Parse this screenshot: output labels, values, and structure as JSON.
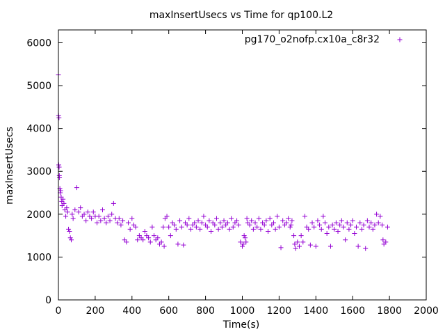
{
  "chart_data": {
    "type": "scatter",
    "title": "maxInsertUsecs vs Time for qp100.L2",
    "xlabel": "Time(s)",
    "ylabel": "maxInsertUsecs",
    "xlim": [
      0,
      2000
    ],
    "ylim": [
      0,
      6300
    ],
    "xticks": [
      0,
      200,
      400,
      600,
      800,
      1000,
      1200,
      1400,
      1600,
      1800,
      2000
    ],
    "yticks": [
      0,
      1000,
      2000,
      3000,
      4000,
      5000,
      6000
    ],
    "grid": false,
    "legend_position": "top-right",
    "series": [
      {
        "name": "pg170_o2nofp.cx10a_c8r32",
        "color": "#9400d3",
        "marker": "plus",
        "points": [
          [
            0,
            5250
          ],
          [
            1,
            4300
          ],
          [
            3,
            4250
          ],
          [
            2,
            3150
          ],
          [
            4,
            3100
          ],
          [
            5,
            2900
          ],
          [
            6,
            2850
          ],
          [
            8,
            2600
          ],
          [
            10,
            2500
          ],
          [
            12,
            2550
          ],
          [
            15,
            2400
          ],
          [
            18,
            2300
          ],
          [
            20,
            2200
          ],
          [
            25,
            2350
          ],
          [
            30,
            2250
          ],
          [
            35,
            2100
          ],
          [
            40,
            1950
          ],
          [
            45,
            2150
          ],
          [
            50,
            2050
          ],
          [
            55,
            1650
          ],
          [
            60,
            1600
          ],
          [
            65,
            1450
          ],
          [
            70,
            1400
          ],
          [
            75,
            2000
          ],
          [
            80,
            1900
          ],
          [
            90,
            2100
          ],
          [
            100,
            2620
          ],
          [
            110,
            2050
          ],
          [
            120,
            2150
          ],
          [
            130,
            1950
          ],
          [
            140,
            2000
          ],
          [
            150,
            1850
          ],
          [
            160,
            2050
          ],
          [
            170,
            1950
          ],
          [
            180,
            1900
          ],
          [
            190,
            2050
          ],
          [
            200,
            1950
          ],
          [
            210,
            1800
          ],
          [
            220,
            1950
          ],
          [
            230,
            1850
          ],
          [
            240,
            2100
          ],
          [
            250,
            1900
          ],
          [
            260,
            1800
          ],
          [
            270,
            1950
          ],
          [
            280,
            1850
          ],
          [
            290,
            2000
          ],
          [
            300,
            2250
          ],
          [
            310,
            1900
          ],
          [
            320,
            1800
          ],
          [
            330,
            1900
          ],
          [
            340,
            1750
          ],
          [
            350,
            1850
          ],
          [
            360,
            1400
          ],
          [
            370,
            1350
          ],
          [
            380,
            1800
          ],
          [
            390,
            1650
          ],
          [
            400,
            1900
          ],
          [
            410,
            1750
          ],
          [
            420,
            1700
          ],
          [
            430,
            1400
          ],
          [
            440,
            1500
          ],
          [
            450,
            1450
          ],
          [
            460,
            1400
          ],
          [
            470,
            1600
          ],
          [
            480,
            1500
          ],
          [
            490,
            1450
          ],
          [
            500,
            1350
          ],
          [
            510,
            1700
          ],
          [
            520,
            1500
          ],
          [
            530,
            1400
          ],
          [
            540,
            1450
          ],
          [
            550,
            1300
          ],
          [
            560,
            1350
          ],
          [
            570,
            1700
          ],
          [
            575,
            1250
          ],
          [
            580,
            1900
          ],
          [
            590,
            1950
          ],
          [
            600,
            1700
          ],
          [
            610,
            1500
          ],
          [
            620,
            1800
          ],
          [
            630,
            1750
          ],
          [
            640,
            1650
          ],
          [
            650,
            1300
          ],
          [
            660,
            1850
          ],
          [
            670,
            1700
          ],
          [
            680,
            1280
          ],
          [
            690,
            1800
          ],
          [
            700,
            1750
          ],
          [
            710,
            1900
          ],
          [
            720,
            1650
          ],
          [
            730,
            1750
          ],
          [
            740,
            1800
          ],
          [
            750,
            1700
          ],
          [
            760,
            1850
          ],
          [
            770,
            1650
          ],
          [
            780,
            1800
          ],
          [
            790,
            1950
          ],
          [
            800,
            1750
          ],
          [
            810,
            1700
          ],
          [
            820,
            1850
          ],
          [
            830,
            1600
          ],
          [
            840,
            1800
          ],
          [
            850,
            1750
          ],
          [
            860,
            1900
          ],
          [
            870,
            1650
          ],
          [
            880,
            1800
          ],
          [
            890,
            1700
          ],
          [
            900,
            1850
          ],
          [
            910,
            1750
          ],
          [
            920,
            1800
          ],
          [
            930,
            1650
          ],
          [
            940,
            1900
          ],
          [
            950,
            1700
          ],
          [
            960,
            1800
          ],
          [
            970,
            1850
          ],
          [
            980,
            1750
          ],
          [
            990,
            1350
          ],
          [
            1000,
            1250
          ],
          [
            1005,
            1300
          ],
          [
            1010,
            1500
          ],
          [
            1015,
            1450
          ],
          [
            1020,
            1350
          ],
          [
            1025,
            1900
          ],
          [
            1030,
            1800
          ],
          [
            1040,
            1750
          ],
          [
            1050,
            1850
          ],
          [
            1060,
            1650
          ],
          [
            1070,
            1800
          ],
          [
            1080,
            1700
          ],
          [
            1090,
            1900
          ],
          [
            1100,
            1650
          ],
          [
            1110,
            1800
          ],
          [
            1120,
            1750
          ],
          [
            1130,
            1850
          ],
          [
            1140,
            1600
          ],
          [
            1150,
            1900
          ],
          [
            1160,
            1750
          ],
          [
            1170,
            1800
          ],
          [
            1180,
            1650
          ],
          [
            1190,
            1950
          ],
          [
            1200,
            1700
          ],
          [
            1210,
            1220
          ],
          [
            1220,
            1850
          ],
          [
            1230,
            1750
          ],
          [
            1240,
            1800
          ],
          [
            1250,
            1900
          ],
          [
            1260,
            1700
          ],
          [
            1265,
            1750
          ],
          [
            1270,
            1850
          ],
          [
            1280,
            1500
          ],
          [
            1285,
            1300
          ],
          [
            1290,
            1200
          ],
          [
            1300,
            1350
          ],
          [
            1310,
            1250
          ],
          [
            1320,
            1500
          ],
          [
            1330,
            1350
          ],
          [
            1340,
            1950
          ],
          [
            1350,
            1700
          ],
          [
            1360,
            1650
          ],
          [
            1370,
            1280
          ],
          [
            1380,
            1800
          ],
          [
            1390,
            1700
          ],
          [
            1400,
            1250
          ],
          [
            1410,
            1850
          ],
          [
            1420,
            1750
          ],
          [
            1430,
            1650
          ],
          [
            1440,
            1950
          ],
          [
            1450,
            1800
          ],
          [
            1460,
            1550
          ],
          [
            1470,
            1700
          ],
          [
            1480,
            1250
          ],
          [
            1490,
            1750
          ],
          [
            1500,
            1650
          ],
          [
            1510,
            1800
          ],
          [
            1520,
            1600
          ],
          [
            1530,
            1750
          ],
          [
            1540,
            1850
          ],
          [
            1550,
            1700
          ],
          [
            1560,
            1400
          ],
          [
            1570,
            1800
          ],
          [
            1580,
            1650
          ],
          [
            1590,
            1750
          ],
          [
            1600,
            1850
          ],
          [
            1610,
            1550
          ],
          [
            1620,
            1700
          ],
          [
            1630,
            1250
          ],
          [
            1640,
            1800
          ],
          [
            1650,
            1650
          ],
          [
            1660,
            1750
          ],
          [
            1670,
            1200
          ],
          [
            1680,
            1850
          ],
          [
            1690,
            1700
          ],
          [
            1700,
            1800
          ],
          [
            1710,
            1650
          ],
          [
            1720,
            1750
          ],
          [
            1730,
            2000
          ],
          [
            1740,
            1800
          ],
          [
            1750,
            1950
          ],
          [
            1760,
            1750
          ],
          [
            1765,
            1400
          ],
          [
            1770,
            1300
          ],
          [
            1780,
            1350
          ],
          [
            1790,
            1700
          ]
        ]
      }
    ]
  }
}
